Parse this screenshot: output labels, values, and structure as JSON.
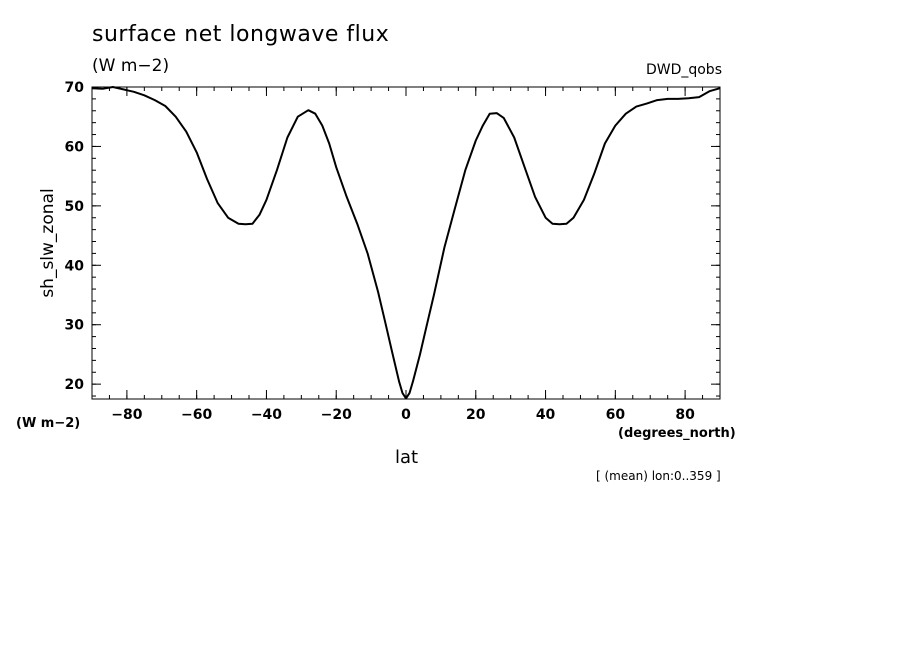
{
  "chart_data": {
    "type": "line",
    "title": "surface net longwave flux",
    "units": "(W m−2)",
    "source_label": "DWD_qobs",
    "ylabel": "sh_slw_zonal",
    "y_units": "(W m−2)",
    "xlabel": "lat",
    "x_units": "(degrees_north)",
    "note": "[ (mean) lon:0..359 ]",
    "xlim": [
      -90,
      90
    ],
    "ylim": [
      17.5,
      70
    ],
    "x_ticks": [
      -80,
      -60,
      -40,
      -20,
      0,
      20,
      40,
      60,
      80
    ],
    "x_tick_labels": [
      "−80",
      "−60",
      "−40",
      "−20",
      "0",
      "20",
      "40",
      "60",
      "80"
    ],
    "y_ticks": [
      20,
      30,
      40,
      50,
      60,
      70
    ],
    "y_tick_labels": [
      "20",
      "30",
      "40",
      "50",
      "60",
      "70"
    ],
    "grid": false,
    "series": [
      {
        "x": [
          -90,
          -87,
          -84,
          -81,
          -78,
          -75,
          -72,
          -69,
          -66,
          -63,
          -60,
          -57,
          -54,
          -51,
          -48,
          -46,
          -44,
          -42,
          -40,
          -37,
          -34,
          -31,
          -28,
          -26,
          -24,
          -22,
          -20,
          -17,
          -14,
          -11,
          -8,
          -6,
          -4,
          -2,
          -1,
          0,
          1,
          2,
          4,
          6,
          8,
          11,
          14,
          17,
          20,
          22,
          24,
          26,
          28,
          31,
          34,
          37,
          40,
          42,
          44,
          46,
          48,
          51,
          54,
          57,
          60,
          63,
          66,
          69,
          72,
          75,
          78,
          81,
          84,
          87,
          90
        ],
        "y": [
          69.8,
          69.7,
          70.0,
          69.6,
          69.2,
          68.6,
          67.8,
          66.8,
          65.0,
          62.5,
          59.0,
          54.5,
          50.5,
          48.0,
          47.0,
          46.9,
          47.0,
          48.5,
          51.0,
          56.0,
          61.5,
          65.0,
          66.1,
          65.5,
          63.5,
          60.5,
          56.5,
          51.5,
          47.0,
          42.0,
          35.5,
          30.5,
          25.5,
          20.5,
          18.5,
          17.6,
          18.5,
          20.5,
          25.0,
          30.0,
          35.0,
          43.0,
          49.5,
          56.0,
          61.0,
          63.5,
          65.5,
          65.6,
          64.8,
          61.5,
          56.5,
          51.5,
          48.0,
          47.0,
          46.9,
          47.0,
          48.0,
          51.0,
          55.5,
          60.5,
          63.5,
          65.5,
          66.7,
          67.2,
          67.8,
          68.0,
          68.0,
          68.1,
          68.3,
          69.3,
          69.8
        ]
      }
    ]
  }
}
